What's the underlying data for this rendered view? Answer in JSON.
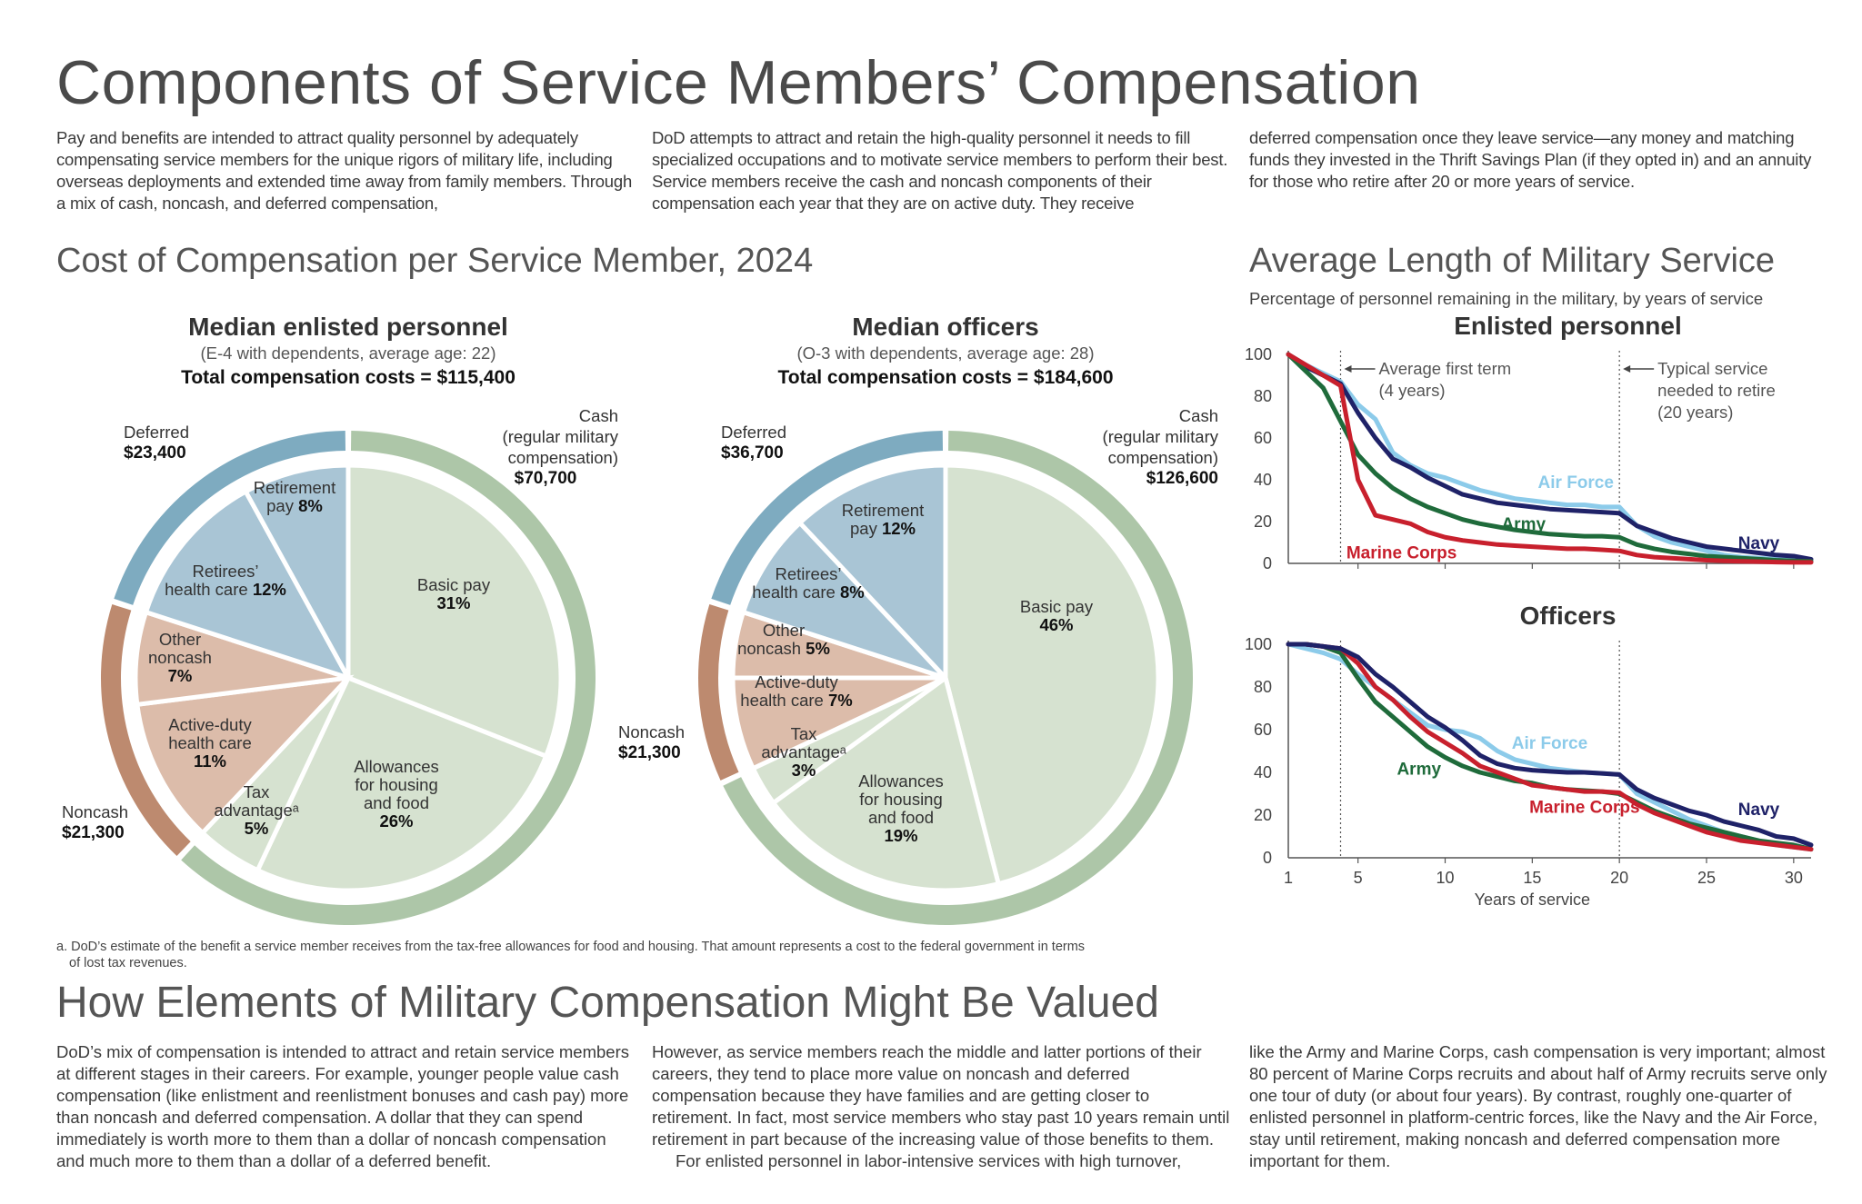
{
  "title": "Components of Service Members’ Compensation",
  "intro": [
    "Pay and benefits are intended to attract quality personnel by adequately compensating service members for the unique rigors of military life, including overseas deployments and extended time away from family members. Through a mix of cash, noncash, and deferred compensation,",
    "DoD attempts to attract and retain the high-quality personnel it needs to fill specialized occupations and to motivate service members to perform their best. Service members receive the cash and noncash components of their compensation each year that they are on active duty. They receive",
    "deferred compensation once they leave service—any money and matching funds they invested in the Thrift Savings Plan (if they opted in) and an annuity for those who retire after 20 or more years of service."
  ],
  "cost_section": {
    "title": "Cost of Compensation per Service Member, 2024"
  },
  "service_section": {
    "title": "Average Length of Military Service",
    "subtitle": "Percentage of personnel remaining in the military, by years of service"
  },
  "colors": {
    "cash_slice": "#d6e2d0",
    "cash_ring": "#adc6a8",
    "noncash_slice": "#dcbcaa",
    "noncash_ring": "#bd8a6f",
    "deferred_slice": "#a9c5d5",
    "deferred_ring": "#7eabc0",
    "air_force": "#8ccbea",
    "navy": "#1f2268",
    "army": "#1f6b3b",
    "marine_corps": "#c8202d"
  },
  "chart_data": [
    {
      "type": "pie",
      "title": "Median enlisted personnel",
      "subtitle": "(E-4 with dependents, average age: 22)",
      "total": "Total compensation costs = $115,400",
      "groups": [
        {
          "key": "cash",
          "label": "Cash (regular military compensation)",
          "label_lines": [
            "Cash",
            "(regular military",
            "compensation)"
          ],
          "amount": "$70,700"
        },
        {
          "key": "noncash",
          "label": "Noncash",
          "label_lines": [
            "Noncash"
          ],
          "amount": "$21,300"
        },
        {
          "key": "deferred",
          "label": "Deferred",
          "label_lines": [
            "Deferred"
          ],
          "amount": "$23,400"
        }
      ],
      "slices": [
        {
          "label": "Basic pay",
          "value": 31,
          "pct": "31%",
          "group": "cash"
        },
        {
          "label": "Allowances for housing and food",
          "value": 26,
          "pct": "26%",
          "group": "cash"
        },
        {
          "label": "Tax advantageᵃ",
          "value": 5,
          "pct": "5%",
          "group": "cash"
        },
        {
          "label": "Active-duty health care",
          "value": 11,
          "pct": "11%",
          "group": "noncash"
        },
        {
          "label": "Other noncash",
          "value": 7,
          "pct": "7%",
          "group": "noncash"
        },
        {
          "label": "Retirees’ health care",
          "value": 12,
          "pct": "12%",
          "group": "deferred"
        },
        {
          "label": "Retirement pay",
          "value": 8,
          "pct": "8%",
          "group": "deferred"
        }
      ]
    },
    {
      "type": "pie",
      "title": "Median officers",
      "subtitle": "(O-3 with dependents, average age: 28)",
      "total": "Total compensation costs = $184,600",
      "groups": [
        {
          "key": "cash",
          "label": "Cash (regular military compensation)",
          "label_lines": [
            "Cash",
            "(regular military",
            "compensation)"
          ],
          "amount": "$126,600"
        },
        {
          "key": "noncash",
          "label": "Noncash",
          "label_lines": [
            "Noncash"
          ],
          "amount": "$21,300"
        },
        {
          "key": "deferred",
          "label": "Deferred",
          "label_lines": [
            "Deferred"
          ],
          "amount": "$36,700"
        }
      ],
      "slices": [
        {
          "label": "Basic pay",
          "value": 46,
          "pct": "46%",
          "group": "cash"
        },
        {
          "label": "Allowances for housing and food",
          "value": 19,
          "pct": "19%",
          "group": "cash"
        },
        {
          "label": "Tax advantageᵃ",
          "value": 3,
          "pct": "3%",
          "group": "cash"
        },
        {
          "label": "Active-duty health care",
          "value": 7,
          "pct": "7%",
          "group": "noncash"
        },
        {
          "label": "Other noncash",
          "value": 5,
          "pct": "5%",
          "group": "noncash"
        },
        {
          "label": "Retirees’ health care",
          "value": 8,
          "pct": "8%",
          "group": "deferred"
        },
        {
          "label": "Retirement pay",
          "value": 12,
          "pct": "12%",
          "group": "deferred"
        }
      ]
    },
    {
      "type": "line",
      "title": "Enlisted personnel",
      "xlabel": "",
      "ylabel": "",
      "xlim": [
        1,
        31
      ],
      "ylim": [
        0,
        100
      ],
      "yticks": [
        0,
        20,
        40,
        60,
        80,
        100
      ],
      "xticks": [],
      "x": [
        1,
        2,
        3,
        4,
        5,
        6,
        7,
        8,
        9,
        10,
        11,
        12,
        13,
        14,
        15,
        16,
        17,
        18,
        19,
        20,
        21,
        22,
        23,
        24,
        25,
        26,
        27,
        28,
        29,
        30,
        31
      ],
      "annotations": [
        {
          "x": 4,
          "lines": [
            "Average first term",
            "(4 years)"
          ]
        },
        {
          "x": 20,
          "lines": [
            "Typical service",
            "needed to retire",
            "(20 years)"
          ]
        }
      ],
      "series": [
        {
          "name": "Air Force",
          "color_key": "air_force",
          "values": [
            100,
            95,
            91,
            87,
            76,
            69,
            53,
            47,
            43,
            41,
            38,
            35,
            33,
            31,
            30,
            29,
            28,
            28,
            27,
            27,
            18,
            13,
            10,
            8,
            6,
            4,
            3,
            2.5,
            2,
            1.5,
            1
          ]
        },
        {
          "name": "Navy",
          "color_key": "navy",
          "values": [
            100,
            94,
            90,
            86,
            72,
            60,
            50,
            46,
            41,
            37,
            33,
            31,
            29,
            28,
            27,
            26,
            25.5,
            25,
            24.5,
            24,
            18,
            15,
            12,
            10,
            8,
            7,
            6,
            5,
            4,
            3.5,
            2
          ]
        },
        {
          "name": "Army",
          "color_key": "army",
          "values": [
            100,
            92,
            84,
            68,
            52,
            43,
            36,
            31,
            27,
            24,
            21,
            19,
            17.5,
            16,
            15,
            14,
            13.5,
            13,
            13,
            12.5,
            9,
            7,
            5.5,
            4.5,
            3.5,
            3,
            2.5,
            2,
            1.5,
            1.2,
            1
          ]
        },
        {
          "name": "Marine Corps",
          "color_key": "marine_corps",
          "values": [
            100,
            95,
            90,
            85,
            40,
            23,
            21,
            19,
            15,
            12.5,
            11,
            10,
            9,
            8.5,
            8,
            7.5,
            7,
            7,
            6.5,
            6,
            4,
            3,
            2.5,
            2,
            1.5,
            1.2,
            1,
            0.8,
            0.6,
            0.5,
            0.5
          ]
        }
      ]
    },
    {
      "type": "line",
      "title": "Officers",
      "xlabel": "Years of service",
      "ylabel": "",
      "xlim": [
        1,
        31
      ],
      "ylim": [
        0,
        100
      ],
      "yticks": [
        0,
        20,
        40,
        60,
        80,
        100
      ],
      "xticks": [
        1,
        5,
        10,
        15,
        20,
        25,
        30
      ],
      "x": [
        1,
        2,
        3,
        4,
        5,
        6,
        7,
        8,
        9,
        10,
        11,
        12,
        13,
        14,
        15,
        16,
        17,
        18,
        19,
        20,
        21,
        22,
        23,
        24,
        25,
        26,
        27,
        28,
        29,
        30,
        31
      ],
      "annotations": [],
      "series": [
        {
          "name": "Air Force",
          "color_key": "air_force",
          "values": [
            100,
            98,
            96,
            93,
            86,
            80,
            74,
            68,
            62,
            60,
            59,
            56,
            50,
            46,
            44,
            42,
            41,
            40,
            39.5,
            39,
            30,
            26,
            22,
            18,
            15,
            12,
            10,
            8,
            6,
            5,
            4
          ]
        },
        {
          "name": "Army",
          "color_key": "army",
          "values": [
            100,
            100,
            99,
            96,
            84,
            73,
            66,
            59,
            52,
            47,
            43,
            40,
            38,
            36,
            35,
            33,
            32,
            31.5,
            31,
            30,
            26,
            22,
            19,
            16,
            14,
            12,
            10,
            8,
            7,
            6,
            4
          ]
        },
        {
          "name": "Marine Corps",
          "color_key": "marine_corps",
          "values": [
            100,
            100,
            99,
            98,
            91,
            80,
            74,
            66,
            59,
            54,
            49,
            43,
            40,
            37,
            34,
            33,
            32,
            31,
            31,
            30.5,
            25,
            21,
            18,
            15,
            12,
            10,
            8,
            7,
            6,
            5,
            4
          ]
        },
        {
          "name": "Navy",
          "color_key": "navy",
          "values": [
            100,
            100,
            99,
            98,
            94,
            86,
            80,
            73,
            66,
            61,
            55,
            48,
            44,
            42,
            41,
            40.5,
            40,
            40,
            39.5,
            39,
            32,
            28,
            25,
            22,
            20,
            17,
            15,
            13,
            10,
            9,
            6
          ]
        }
      ]
    }
  ],
  "footnote": {
    "marker": "a.",
    "text": "DoD’s estimate of the benefit a service member receives from the tax-free allowances for food and housing. That amount represents a cost to the federal government in terms",
    "text2": "of lost tax revenues."
  },
  "valued_section": {
    "title": "How Elements of Military Compensation Might Be Valued",
    "columns": [
      [
        "DoD’s mix of compensation is intended to attract and retain service members at different stages in their careers. For example, younger people value cash compensation (like enlistment and reenlistment bonuses and cash pay) more than noncash and deferred compensation. A dollar that they can spend immediately is worth more to them than a dollar of noncash compensation and much more to them than a dollar of a deferred benefit."
      ],
      [
        "However, as service members reach the middle and latter portions of their careers, they tend to place more value on noncash and deferred compensation because they have families and are getting closer to retirement. In fact, most service members who stay past 10 years remain until retirement in part because of the increasing value of those benefits to them.",
        "For enlisted personnel in labor-intensive services with high turnover,"
      ],
      [
        "like the Army and Marine Corps, cash compensation is very important; almost 80 percent of Marine Corps recruits and about half of Army recruits serve only one tour of duty (or about four years). By contrast, roughly one-quarter of enlisted personnel in platform-centric forces, like the Navy and the Air Force, stay until retirement, making noncash and deferred compensation more important for them."
      ]
    ]
  }
}
